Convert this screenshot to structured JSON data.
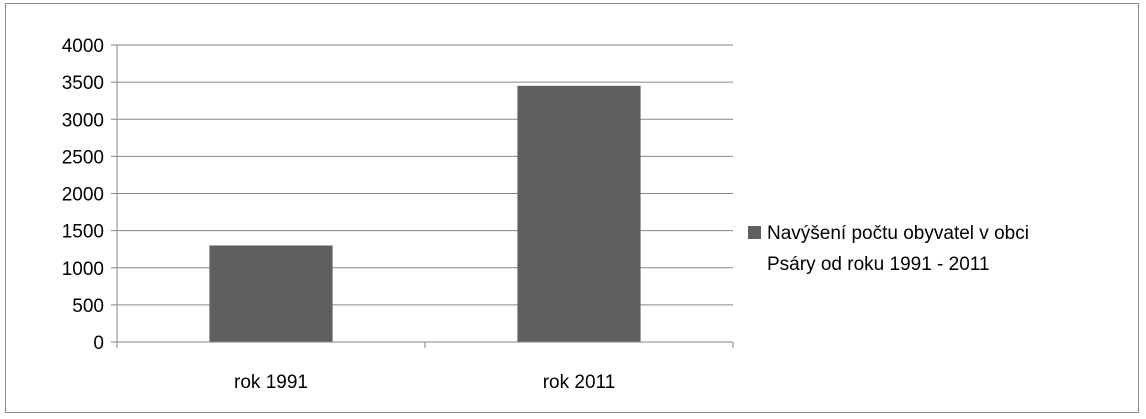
{
  "chart_data": {
    "type": "bar",
    "categories": [
      "rok 1991",
      "rok 2011"
    ],
    "series": [
      {
        "name": "Navýšení počtu obyvatel v obci Psáry od roku 1991 - 2011",
        "values": [
          1300,
          3450
        ],
        "color": "#5f5f5f"
      }
    ],
    "title": "",
    "xlabel": "",
    "ylabel": "",
    "ylim": [
      0,
      4000
    ],
    "yticks": [
      "0",
      "500",
      "1000",
      "1500",
      "2000",
      "2500",
      "3000",
      "3500",
      "4000"
    ],
    "grid": true,
    "legend_position": "right",
    "legend_lines": [
      "Navýšení počtu obyvatel v obci",
      "Psáry od roku 1991 - 2011"
    ]
  }
}
